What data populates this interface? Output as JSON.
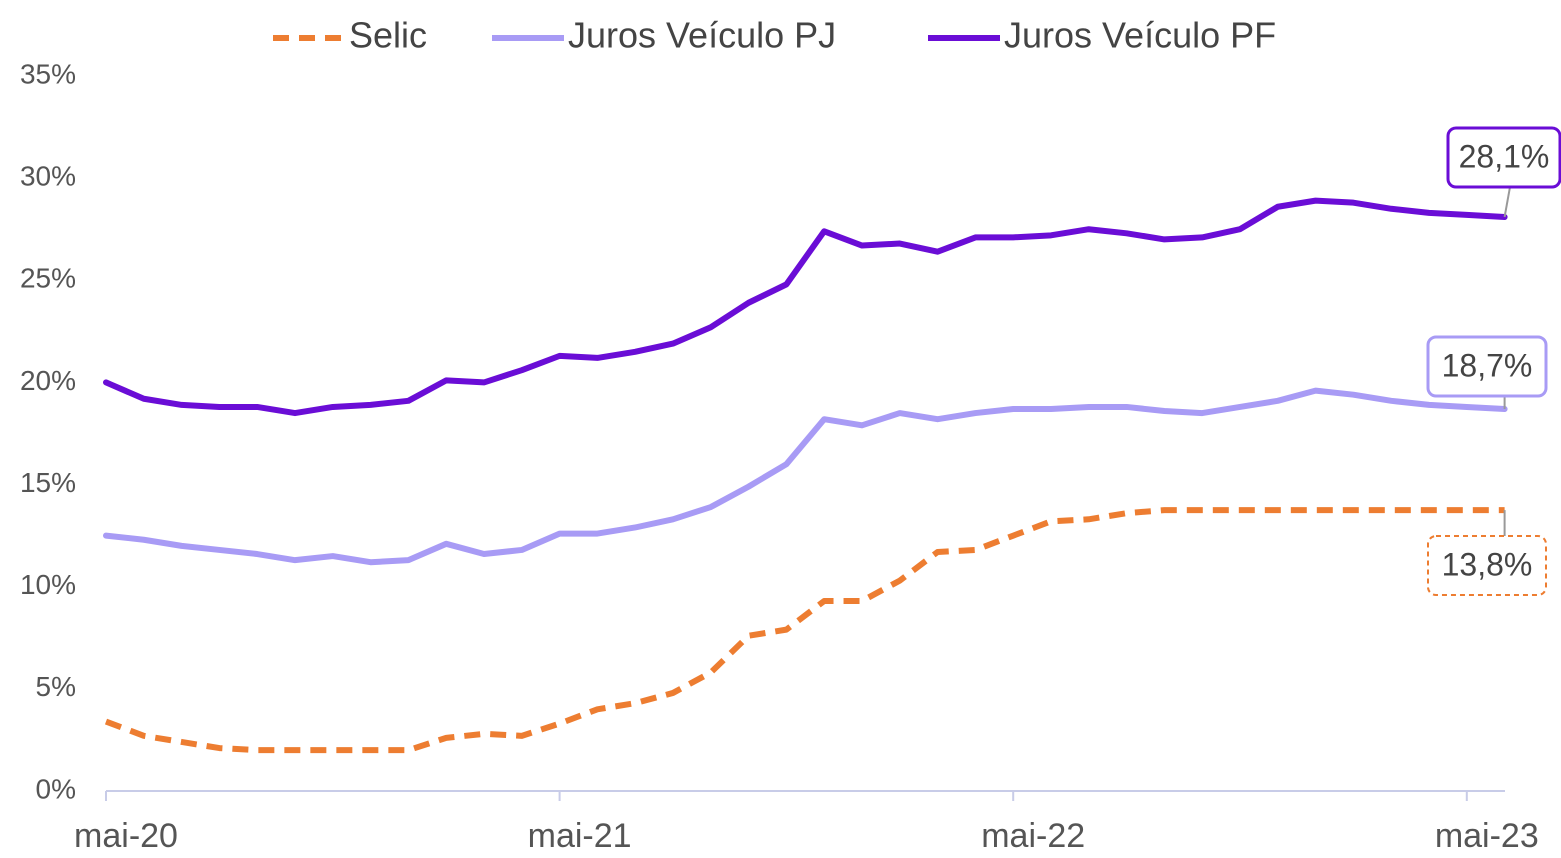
{
  "chart_data": {
    "type": "line",
    "categories": [
      "mai-20",
      null,
      null,
      null,
      null,
      null,
      null,
      null,
      null,
      null,
      null,
      null,
      "mai-21",
      null,
      null,
      null,
      null,
      null,
      null,
      null,
      null,
      null,
      null,
      null,
      "mai-22",
      null,
      null,
      null,
      null,
      null,
      null,
      null,
      null,
      null,
      null,
      null,
      "mai-23",
      null
    ],
    "series": [
      {
        "name": "Selic",
        "color": "#ed7d31",
        "dashed": true,
        "values": [
          3.4,
          2.7,
          2.4,
          2.1,
          2.0,
          2.0,
          2.0,
          2.0,
          2.0,
          2.6,
          2.8,
          2.7,
          3.3,
          4.0,
          4.3,
          4.8,
          5.8,
          7.6,
          7.9,
          9.3,
          9.3,
          10.3,
          11.7,
          11.8,
          12.5,
          13.2,
          13.3,
          13.6,
          13.75,
          13.75,
          13.75,
          13.75,
          13.75,
          13.75,
          13.75,
          13.75,
          13.75,
          13.75
        ],
        "value_labels": [
          null,
          null,
          null,
          null,
          null,
          null,
          null,
          null,
          null,
          null,
          null,
          null,
          null,
          null,
          null,
          null,
          null,
          null,
          null,
          null,
          null,
          null,
          null,
          null,
          null,
          null,
          null,
          null,
          null,
          null,
          null,
          null,
          null,
          null,
          null,
          null,
          null,
          "13,8%"
        ]
      },
      {
        "name": "Juros Veículo PJ",
        "color": "#a89bf5",
        "dashed": false,
        "values": [
          12.5,
          12.3,
          12.0,
          11.8,
          11.6,
          11.3,
          11.5,
          11.2,
          11.3,
          12.1,
          11.6,
          11.8,
          12.6,
          12.6,
          12.9,
          13.3,
          13.9,
          14.9,
          16.0,
          18.2,
          17.9,
          18.5,
          18.2,
          18.5,
          18.7,
          18.7,
          18.8,
          18.8,
          18.6,
          18.5,
          18.8,
          19.1,
          19.6,
          19.4,
          19.1,
          18.9,
          18.8,
          18.7
        ],
        "value_labels": [
          null,
          null,
          null,
          null,
          null,
          null,
          null,
          null,
          null,
          null,
          null,
          null,
          null,
          null,
          null,
          null,
          null,
          null,
          null,
          null,
          null,
          null,
          null,
          null,
          null,
          null,
          null,
          null,
          null,
          null,
          null,
          null,
          null,
          null,
          null,
          null,
          null,
          "18,7%"
        ]
      },
      {
        "name": "Juros Veículo PF",
        "color": "#6a0dd6",
        "dashed": false,
        "values": [
          20.0,
          19.2,
          18.9,
          18.8,
          18.8,
          18.5,
          18.8,
          18.9,
          19.1,
          20.1,
          20.0,
          20.6,
          21.3,
          21.2,
          21.5,
          21.9,
          22.7,
          23.9,
          24.8,
          27.4,
          26.7,
          26.8,
          26.4,
          27.1,
          27.1,
          27.2,
          27.5,
          27.3,
          27.0,
          27.1,
          27.5,
          28.6,
          28.9,
          28.8,
          28.5,
          28.3,
          28.2,
          28.1
        ],
        "value_labels": [
          null,
          null,
          null,
          null,
          null,
          null,
          null,
          null,
          null,
          null,
          null,
          null,
          null,
          null,
          null,
          null,
          null,
          null,
          null,
          null,
          null,
          null,
          null,
          null,
          null,
          null,
          null,
          null,
          null,
          null,
          null,
          null,
          null,
          null,
          null,
          null,
          null,
          "28,1%"
        ]
      }
    ],
    "ylim": [
      0,
      35
    ],
    "yticks": [
      {
        "value": 0,
        "label": "0%"
      },
      {
        "value": 5,
        "label": "5%"
      },
      {
        "value": 10,
        "label": "10%"
      },
      {
        "value": 15,
        "label": "15%"
      },
      {
        "value": 20,
        "label": "20%"
      },
      {
        "value": 25,
        "label": "25%"
      },
      {
        "value": 30,
        "label": "30%"
      },
      {
        "value": 35,
        "label": "35%"
      }
    ],
    "grid": false,
    "legend": "top"
  }
}
